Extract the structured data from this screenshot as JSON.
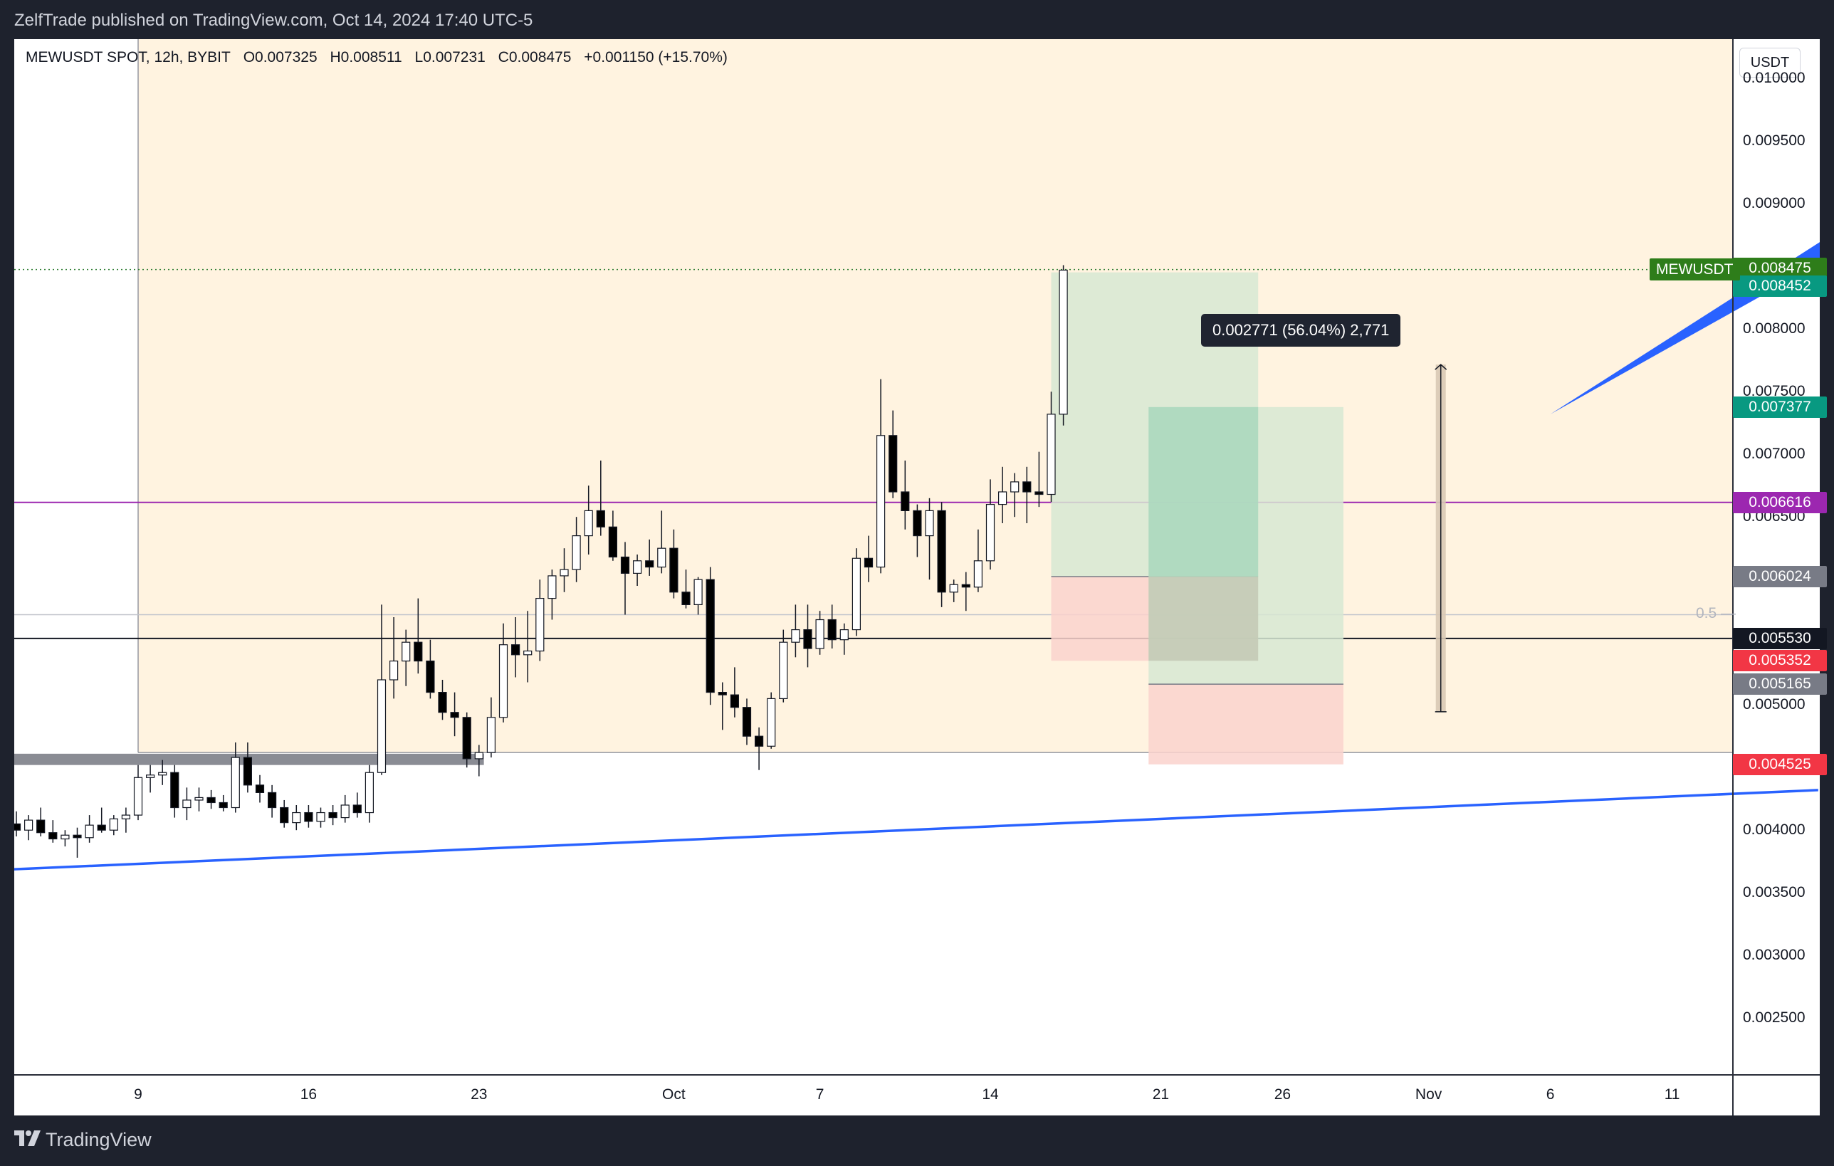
{
  "header": {
    "publish_line": "ZelfTrade published on TradingView.com, Oct 14, 2024 17:40 UTC-5"
  },
  "brand": {
    "name": "TradingView"
  },
  "legend": {
    "symbol": "MEWUSDT SPOT, 12h, BYBIT",
    "open": "O0.007325",
    "high": "H0.008511",
    "low": "L0.007231",
    "close": "C0.008475",
    "change": "+0.001150 (+15.70%)"
  },
  "currency_button": "USDT",
  "colors": {
    "up": "#ffffff",
    "down": "#000000",
    "trendline": "#2962ff",
    "zone": "#fff3e0",
    "target": "#d7e7d2",
    "target_dark": "#abd7c2",
    "stop": "#fad2cd",
    "purple": "#9c27b0"
  },
  "chart_data": {
    "type": "candlestick",
    "title": "MEWUSDT SPOT, 12h, BYBIT",
    "ylabel": "USDT",
    "xlabel": "",
    "ylim": [
      0.0022,
      0.0107
    ],
    "y_ticks": [
      "0.002500",
      "0.003000",
      "0.003500",
      "0.004000",
      "0.005000",
      "0.006500",
      "0.007000",
      "0.007500",
      "0.008000",
      "0.009000",
      "0.009500",
      "0.010000"
    ],
    "x_ticks": [
      {
        "label": "9",
        "day": 9
      },
      {
        "label": "16",
        "day": 16
      },
      {
        "label": "23",
        "day": 23
      },
      {
        "label": "Oct",
        "day": 31
      },
      {
        "label": "7",
        "day": 37
      },
      {
        "label": "14",
        "day": 44
      },
      {
        "label": "21",
        "day": 51
      },
      {
        "label": "26",
        "day": 56
      },
      {
        "label": "Nov",
        "day": 62
      },
      {
        "label": "6",
        "day": 67
      },
      {
        "label": "11",
        "day": 72
      }
    ],
    "candles": [
      {
        "d": 4.0,
        "o": 0.00405,
        "h": 0.00415,
        "l": 0.00395,
        "c": 0.004
      },
      {
        "d": 4.5,
        "o": 0.004,
        "h": 0.00412,
        "l": 0.00392,
        "c": 0.00408
      },
      {
        "d": 5.0,
        "o": 0.00408,
        "h": 0.00418,
        "l": 0.00395,
        "c": 0.00398
      },
      {
        "d": 5.5,
        "o": 0.00398,
        "h": 0.00408,
        "l": 0.0039,
        "c": 0.00393
      },
      {
        "d": 6.0,
        "o": 0.00393,
        "h": 0.004,
        "l": 0.00387,
        "c": 0.00396
      },
      {
        "d": 6.5,
        "o": 0.00396,
        "h": 0.00402,
        "l": 0.00378,
        "c": 0.00394
      },
      {
        "d": 7.0,
        "o": 0.00394,
        "h": 0.00412,
        "l": 0.0039,
        "c": 0.00404
      },
      {
        "d": 7.5,
        "o": 0.00404,
        "h": 0.00418,
        "l": 0.00398,
        "c": 0.004
      },
      {
        "d": 8.0,
        "o": 0.004,
        "h": 0.00412,
        "l": 0.00396,
        "c": 0.00409
      },
      {
        "d": 8.5,
        "o": 0.00409,
        "h": 0.00418,
        "l": 0.00398,
        "c": 0.00412
      },
      {
        "d": 9.0,
        "o": 0.00412,
        "h": 0.00452,
        "l": 0.00408,
        "c": 0.00442
      },
      {
        "d": 9.5,
        "o": 0.00442,
        "h": 0.00452,
        "l": 0.0043,
        "c": 0.00444
      },
      {
        "d": 10.0,
        "o": 0.00444,
        "h": 0.00456,
        "l": 0.00436,
        "c": 0.00446
      },
      {
        "d": 10.5,
        "o": 0.00446,
        "h": 0.00452,
        "l": 0.0041,
        "c": 0.00418
      },
      {
        "d": 11.0,
        "o": 0.00418,
        "h": 0.00434,
        "l": 0.00408,
        "c": 0.00424
      },
      {
        "d": 11.5,
        "o": 0.00424,
        "h": 0.00434,
        "l": 0.00415,
        "c": 0.00426
      },
      {
        "d": 12.0,
        "o": 0.00426,
        "h": 0.00432,
        "l": 0.00417,
        "c": 0.00422
      },
      {
        "d": 12.5,
        "o": 0.00422,
        "h": 0.00428,
        "l": 0.00415,
        "c": 0.00418
      },
      {
        "d": 13.0,
        "o": 0.00418,
        "h": 0.0047,
        "l": 0.00414,
        "c": 0.00458
      },
      {
        "d": 13.5,
        "o": 0.00458,
        "h": 0.0047,
        "l": 0.0043,
        "c": 0.00436
      },
      {
        "d": 14.0,
        "o": 0.00436,
        "h": 0.00444,
        "l": 0.00422,
        "c": 0.0043
      },
      {
        "d": 14.5,
        "o": 0.0043,
        "h": 0.00436,
        "l": 0.0041,
        "c": 0.00418
      },
      {
        "d": 15.0,
        "o": 0.00418,
        "h": 0.00424,
        "l": 0.00402,
        "c": 0.00406
      },
      {
        "d": 15.5,
        "o": 0.00406,
        "h": 0.0042,
        "l": 0.004,
        "c": 0.00414
      },
      {
        "d": 16.0,
        "o": 0.00414,
        "h": 0.0042,
        "l": 0.00402,
        "c": 0.00407
      },
      {
        "d": 16.5,
        "o": 0.00407,
        "h": 0.00418,
        "l": 0.00402,
        "c": 0.00414
      },
      {
        "d": 17.0,
        "o": 0.00414,
        "h": 0.0042,
        "l": 0.00404,
        "c": 0.0041
      },
      {
        "d": 17.5,
        "o": 0.0041,
        "h": 0.00428,
        "l": 0.00406,
        "c": 0.0042
      },
      {
        "d": 18.0,
        "o": 0.0042,
        "h": 0.0043,
        "l": 0.0041,
        "c": 0.00414
      },
      {
        "d": 18.5,
        "o": 0.00414,
        "h": 0.00452,
        "l": 0.00406,
        "c": 0.00446
      },
      {
        "d": 19.0,
        "o": 0.00446,
        "h": 0.0058,
        "l": 0.00444,
        "c": 0.0052
      },
      {
        "d": 19.5,
        "o": 0.0052,
        "h": 0.0057,
        "l": 0.00505,
        "c": 0.00535
      },
      {
        "d": 20.0,
        "o": 0.00535,
        "h": 0.0056,
        "l": 0.00515,
        "c": 0.0055
      },
      {
        "d": 20.5,
        "o": 0.0055,
        "h": 0.00585,
        "l": 0.00525,
        "c": 0.00535
      },
      {
        "d": 21.0,
        "o": 0.00535,
        "h": 0.00552,
        "l": 0.00505,
        "c": 0.0051
      },
      {
        "d": 21.5,
        "o": 0.0051,
        "h": 0.0052,
        "l": 0.00488,
        "c": 0.00494
      },
      {
        "d": 22.0,
        "o": 0.00494,
        "h": 0.0051,
        "l": 0.00475,
        "c": 0.0049
      },
      {
        "d": 22.5,
        "o": 0.0049,
        "h": 0.00494,
        "l": 0.0045,
        "c": 0.00457
      },
      {
        "d": 23.0,
        "o": 0.00457,
        "h": 0.00468,
        "l": 0.00443,
        "c": 0.00462
      },
      {
        "d": 23.5,
        "o": 0.00462,
        "h": 0.00506,
        "l": 0.00458,
        "c": 0.0049
      },
      {
        "d": 24.0,
        "o": 0.0049,
        "h": 0.00565,
        "l": 0.00486,
        "c": 0.00548
      },
      {
        "d": 24.5,
        "o": 0.00548,
        "h": 0.0057,
        "l": 0.00522,
        "c": 0.0054
      },
      {
        "d": 25.0,
        "o": 0.0054,
        "h": 0.00575,
        "l": 0.00518,
        "c": 0.00543
      },
      {
        "d": 25.5,
        "o": 0.00543,
        "h": 0.006,
        "l": 0.00535,
        "c": 0.00585
      },
      {
        "d": 26.0,
        "o": 0.00585,
        "h": 0.00608,
        "l": 0.00568,
        "c": 0.00603
      },
      {
        "d": 26.5,
        "o": 0.00603,
        "h": 0.00625,
        "l": 0.0059,
        "c": 0.00608
      },
      {
        "d": 27.0,
        "o": 0.00608,
        "h": 0.0065,
        "l": 0.00598,
        "c": 0.00635
      },
      {
        "d": 27.5,
        "o": 0.00635,
        "h": 0.00675,
        "l": 0.0062,
        "c": 0.00655
      },
      {
        "d": 28.0,
        "o": 0.00655,
        "h": 0.00695,
        "l": 0.00635,
        "c": 0.00642
      },
      {
        "d": 28.5,
        "o": 0.00642,
        "h": 0.00655,
        "l": 0.00615,
        "c": 0.00618
      },
      {
        "d": 29.0,
        "o": 0.00618,
        "h": 0.0063,
        "l": 0.00572,
        "c": 0.00605
      },
      {
        "d": 29.5,
        "o": 0.00605,
        "h": 0.0062,
        "l": 0.00595,
        "c": 0.00615
      },
      {
        "d": 30.0,
        "o": 0.00615,
        "h": 0.00632,
        "l": 0.00603,
        "c": 0.0061
      },
      {
        "d": 30.5,
        "o": 0.0061,
        "h": 0.00655,
        "l": 0.00605,
        "c": 0.00625
      },
      {
        "d": 31.0,
        "o": 0.00625,
        "h": 0.0064,
        "l": 0.00585,
        "c": 0.0059
      },
      {
        "d": 31.5,
        "o": 0.0059,
        "h": 0.00608,
        "l": 0.00577,
        "c": 0.0058
      },
      {
        "d": 32.0,
        "o": 0.0058,
        "h": 0.00602,
        "l": 0.00572,
        "c": 0.006
      },
      {
        "d": 32.5,
        "o": 0.006,
        "h": 0.0061,
        "l": 0.005,
        "c": 0.0051
      },
      {
        "d": 33.0,
        "o": 0.0051,
        "h": 0.00518,
        "l": 0.0048,
        "c": 0.00508
      },
      {
        "d": 33.5,
        "o": 0.00508,
        "h": 0.0053,
        "l": 0.0049,
        "c": 0.00498
      },
      {
        "d": 34.0,
        "o": 0.00498,
        "h": 0.00505,
        "l": 0.00468,
        "c": 0.00475
      },
      {
        "d": 34.5,
        "o": 0.00475,
        "h": 0.00482,
        "l": 0.00448,
        "c": 0.00467
      },
      {
        "d": 35.0,
        "o": 0.00467,
        "h": 0.0051,
        "l": 0.00465,
        "c": 0.00505
      },
      {
        "d": 35.5,
        "o": 0.00505,
        "h": 0.0056,
        "l": 0.00502,
        "c": 0.0055
      },
      {
        "d": 36.0,
        "o": 0.0055,
        "h": 0.0058,
        "l": 0.00538,
        "c": 0.0056
      },
      {
        "d": 36.5,
        "o": 0.0056,
        "h": 0.0058,
        "l": 0.0053,
        "c": 0.00545
      },
      {
        "d": 37.0,
        "o": 0.00545,
        "h": 0.00575,
        "l": 0.0054,
        "c": 0.00568
      },
      {
        "d": 37.5,
        "o": 0.00568,
        "h": 0.0058,
        "l": 0.00545,
        "c": 0.00552
      },
      {
        "d": 38.0,
        "o": 0.00552,
        "h": 0.00565,
        "l": 0.0054,
        "c": 0.0056
      },
      {
        "d": 38.5,
        "o": 0.0056,
        "h": 0.00625,
        "l": 0.00555,
        "c": 0.00617
      },
      {
        "d": 39.0,
        "o": 0.00617,
        "h": 0.00635,
        "l": 0.00598,
        "c": 0.0061
      },
      {
        "d": 39.5,
        "o": 0.0061,
        "h": 0.0076,
        "l": 0.00605,
        "c": 0.00715
      },
      {
        "d": 40.0,
        "o": 0.00715,
        "h": 0.00735,
        "l": 0.00665,
        "c": 0.0067
      },
      {
        "d": 40.5,
        "o": 0.0067,
        "h": 0.00695,
        "l": 0.0064,
        "c": 0.00655
      },
      {
        "d": 41.0,
        "o": 0.00655,
        "h": 0.0066,
        "l": 0.00618,
        "c": 0.00635
      },
      {
        "d": 41.5,
        "o": 0.00635,
        "h": 0.00665,
        "l": 0.006,
        "c": 0.00655
      },
      {
        "d": 42.0,
        "o": 0.00655,
        "h": 0.00662,
        "l": 0.00578,
        "c": 0.0059
      },
      {
        "d": 42.5,
        "o": 0.0059,
        "h": 0.006,
        "l": 0.00582,
        "c": 0.00596
      },
      {
        "d": 43.0,
        "o": 0.00596,
        "h": 0.00606,
        "l": 0.00575,
        "c": 0.00594
      },
      {
        "d": 43.5,
        "o": 0.00594,
        "h": 0.0064,
        "l": 0.0059,
        "c": 0.00615
      },
      {
        "d": 44.0,
        "o": 0.00615,
        "h": 0.0068,
        "l": 0.00608,
        "c": 0.0066
      },
      {
        "d": 44.5,
        "o": 0.0066,
        "h": 0.0069,
        "l": 0.00645,
        "c": 0.0067
      },
      {
        "d": 45.0,
        "o": 0.0067,
        "h": 0.00685,
        "l": 0.0065,
        "c": 0.00678
      },
      {
        "d": 45.5,
        "o": 0.00678,
        "h": 0.0069,
        "l": 0.00645,
        "c": 0.0067
      },
      {
        "d": 46.0,
        "o": 0.0067,
        "h": 0.00702,
        "l": 0.00658,
        "c": 0.00668
      },
      {
        "d": 46.5,
        "o": 0.00668,
        "h": 0.0075,
        "l": 0.00662,
        "c": 0.00732
      },
      {
        "d": 47.0,
        "o": 0.00732,
        "h": 0.00851,
        "l": 0.00723,
        "c": 0.00847
      }
    ],
    "price_labels": [
      {
        "label": "MEWUSDT",
        "value": 0.008475
      },
      {
        "label": "0.008475",
        "value": 0.008475
      },
      {
        "label": "0.008452",
        "value": 0.008452
      },
      {
        "label": "0.007377",
        "value": 0.007377
      },
      {
        "label": "0.006616",
        "value": 0.006616
      },
      {
        "label": "0.006024",
        "value": 0.006024
      },
      {
        "label": "0.005530",
        "value": 0.00553
      },
      {
        "label": "0.005352",
        "value": 0.005352
      },
      {
        "label": "0.005165",
        "value": 0.005165
      },
      {
        "label": "0.004525",
        "value": 0.004525
      }
    ],
    "horizontal_lines": [
      {
        "name": "last-price",
        "value": 0.008475
      },
      {
        "name": "purple-level",
        "value": 0.006616
      },
      {
        "name": "fib-0.5",
        "value": 0.00572,
        "label": "0.5"
      },
      {
        "name": "black-level",
        "value": 0.00553
      },
      {
        "name": "zone-floor",
        "value": 0.00462
      }
    ],
    "demand_zone": {
      "from_day": 3.7,
      "to_day": 23.2,
      "low": 0.00452,
      "high": 0.00461
    },
    "highlight_zone": {
      "from_day": 9.0,
      "low": 0.00462,
      "high": 0.0106
    },
    "trendline": {
      "d1": 3.0,
      "p1": 0.00368,
      "d2": 78.0,
      "p2": 0.00432
    },
    "blue_arrow": {
      "d1": 67.0,
      "p1": 0.00732,
      "d2": 81.0,
      "p2": 0.00895
    },
    "positions": [
      {
        "from_day": 46.5,
        "to_day": 55.0,
        "entry": 0.006024,
        "target": 0.008452,
        "stop": 0.005352
      },
      {
        "from_day": 50.5,
        "to_day": 58.5,
        "entry": 0.005165,
        "target": 0.007377,
        "stop": 0.004525
      }
    ],
    "measure": {
      "day": 62.5,
      "from": 0.004945,
      "to": 0.007716,
      "text": "0.002771 (56.04%) 2,771"
    }
  }
}
